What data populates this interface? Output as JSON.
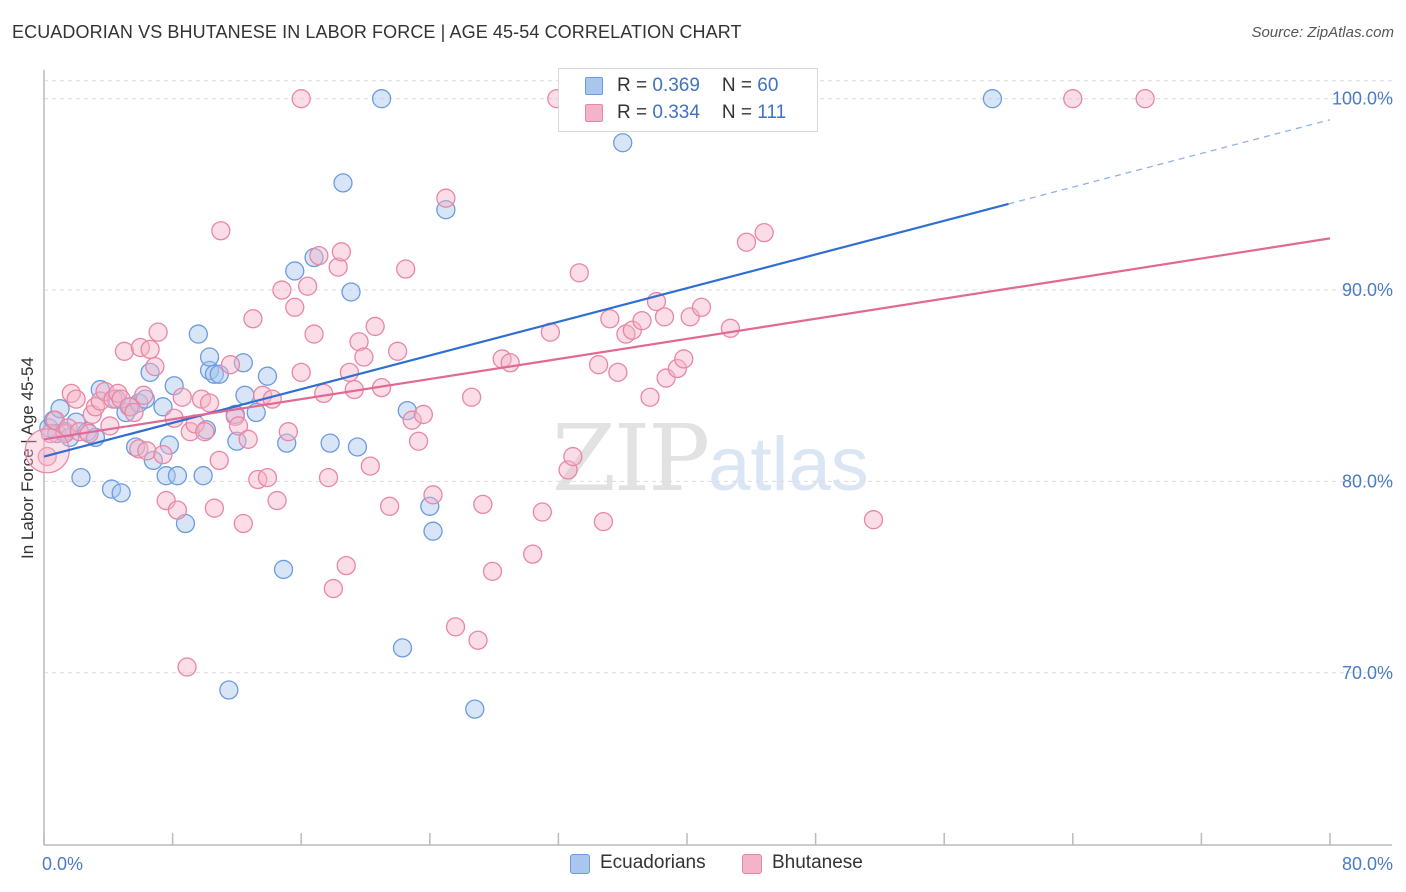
{
  "title": "ECUADORIAN VS BHUTANESE IN LABOR FORCE | AGE 45-54 CORRELATION CHART",
  "source": "Source: ZipAtlas.com",
  "watermark": {
    "zip": "ZIP",
    "atlas": "atlas"
  },
  "legend": {
    "series1": {
      "r_label": "R = ",
      "r_value": "0.369",
      "n_label": "N = ",
      "n_value": "60",
      "color": "#a9c6ee"
    },
    "series2": {
      "r_label": "R = ",
      "r_value": "0.334",
      "n_label": "N = ",
      "n_value": "111",
      "color": "#f4b3c8"
    }
  },
  "bottom_legend": {
    "series1": "Ecuadorians",
    "series2": "Bhutanese"
  },
  "chart_data": {
    "type": "scatter",
    "title": "ECUADORIAN VS BHUTANESE IN LABOR FORCE | AGE 45-54 CORRELATION CHART",
    "xlabel": "",
    "ylabel": "In Labor Force | Age 45-54",
    "xlim": [
      0,
      80
    ],
    "ylim": [
      61,
      101.5
    ],
    "x_tick_labels": [
      "0.0%",
      "80.0%"
    ],
    "y_ticks": [
      70,
      80,
      90,
      100
    ],
    "y_tick_labels": [
      "70.0%",
      "80.0%",
      "90.0%",
      "100.0%"
    ],
    "grid": true,
    "series": [
      {
        "name": "Ecuadorians",
        "color": "#6b9be0",
        "fill": "#a9c6ee",
        "trend": {
          "x0": 0,
          "y0": 81.3,
          "x1": 60,
          "y1": 94.5,
          "dashed_to_x": 80,
          "dashed_to_y": 98.9,
          "color": "#2f6fd0"
        },
        "points": [
          [
            0.3,
            82.8
          ],
          [
            0.6,
            83.2
          ],
          [
            0.8,
            82.5
          ],
          [
            1.0,
            83.8
          ],
          [
            1.3,
            82.6
          ],
          [
            1.6,
            82.3
          ],
          [
            2.0,
            83.1
          ],
          [
            2.3,
            80.2
          ],
          [
            2.7,
            82.6
          ],
          [
            3.2,
            82.3
          ],
          [
            3.5,
            84.8
          ],
          [
            4.2,
            79.6
          ],
          [
            4.5,
            84.3
          ],
          [
            4.8,
            79.4
          ],
          [
            5.1,
            83.6
          ],
          [
            5.4,
            83.9
          ],
          [
            5.7,
            81.8
          ],
          [
            5.9,
            84.1
          ],
          [
            6.3,
            84.3
          ],
          [
            6.6,
            85.7
          ],
          [
            6.8,
            81.1
          ],
          [
            7.4,
            83.9
          ],
          [
            7.6,
            80.3
          ],
          [
            7.8,
            81.9
          ],
          [
            8.1,
            85.0
          ],
          [
            8.3,
            80.3
          ],
          [
            8.8,
            77.8
          ],
          [
            9.6,
            87.7
          ],
          [
            9.9,
            80.3
          ],
          [
            10.1,
            82.7
          ],
          [
            10.3,
            85.8
          ],
          [
            10.3,
            86.5
          ],
          [
            10.6,
            85.6
          ],
          [
            10.9,
            85.6
          ],
          [
            11.5,
            69.1
          ],
          [
            11.9,
            83.5
          ],
          [
            12.0,
            82.1
          ],
          [
            12.4,
            86.2
          ],
          [
            12.5,
            84.5
          ],
          [
            13.2,
            83.6
          ],
          [
            13.9,
            85.5
          ],
          [
            14.9,
            75.4
          ],
          [
            15.1,
            82.0
          ],
          [
            15.6,
            91.0
          ],
          [
            16.8,
            91.7
          ],
          [
            17.8,
            82.0
          ],
          [
            18.6,
            95.6
          ],
          [
            19.1,
            89.9
          ],
          [
            19.5,
            81.8
          ],
          [
            21.0,
            100.0
          ],
          [
            22.3,
            71.3
          ],
          [
            22.6,
            83.7
          ],
          [
            24.0,
            78.7
          ],
          [
            24.2,
            77.4
          ],
          [
            25.0,
            94.2
          ],
          [
            26.8,
            68.1
          ],
          [
            36.0,
            97.7
          ],
          [
            59.0,
            100.0
          ]
        ]
      },
      {
        "name": "Bhutanese",
        "color": "#ea86a5",
        "fill": "#f4b3c8",
        "trend": {
          "x0": 0,
          "y0": 82.2,
          "x1": 80,
          "y1": 92.7,
          "color": "#e06a94"
        },
        "points": [
          [
            0.2,
            81.3
          ],
          [
            0.4,
            82.5
          ],
          [
            0.7,
            83.2
          ],
          [
            1.3,
            82.5
          ],
          [
            1.5,
            82.8
          ],
          [
            1.7,
            84.6
          ],
          [
            2.0,
            84.3
          ],
          [
            2.2,
            82.6
          ],
          [
            2.8,
            82.5
          ],
          [
            3.0,
            83.5
          ],
          [
            3.2,
            83.9
          ],
          [
            3.5,
            84.2
          ],
          [
            3.8,
            84.7
          ],
          [
            4.1,
            82.9
          ],
          [
            4.3,
            84.3
          ],
          [
            4.6,
            84.6
          ],
          [
            4.8,
            84.3
          ],
          [
            5.0,
            86.8
          ],
          [
            5.3,
            83.9
          ],
          [
            5.6,
            83.6
          ],
          [
            5.9,
            81.7
          ],
          [
            6.0,
            87.0
          ],
          [
            6.2,
            84.5
          ],
          [
            6.4,
            81.6
          ],
          [
            6.6,
            86.9
          ],
          [
            6.9,
            86.0
          ],
          [
            7.1,
            87.8
          ],
          [
            7.4,
            81.4
          ],
          [
            7.6,
            79.0
          ],
          [
            8.1,
            83.3
          ],
          [
            8.3,
            78.5
          ],
          [
            8.6,
            84.4
          ],
          [
            8.9,
            70.3
          ],
          [
            9.1,
            82.6
          ],
          [
            9.4,
            83.0
          ],
          [
            9.8,
            84.3
          ],
          [
            10.0,
            82.6
          ],
          [
            10.3,
            84.1
          ],
          [
            10.6,
            78.6
          ],
          [
            10.9,
            81.1
          ],
          [
            11.0,
            93.1
          ],
          [
            11.6,
            86.1
          ],
          [
            11.9,
            83.4
          ],
          [
            12.1,
            82.9
          ],
          [
            12.4,
            77.8
          ],
          [
            12.7,
            82.2
          ],
          [
            13.0,
            88.5
          ],
          [
            13.3,
            80.1
          ],
          [
            13.6,
            84.5
          ],
          [
            13.9,
            80.2
          ],
          [
            14.2,
            84.3
          ],
          [
            14.5,
            79.0
          ],
          [
            14.8,
            90.0
          ],
          [
            15.2,
            82.6
          ],
          [
            15.6,
            89.1
          ],
          [
            16.0,
            85.7
          ],
          [
            16.4,
            90.2
          ],
          [
            16.8,
            87.7
          ],
          [
            17.1,
            91.8
          ],
          [
            17.4,
            84.6
          ],
          [
            17.7,
            80.2
          ],
          [
            18.0,
            74.4
          ],
          [
            18.3,
            91.2
          ],
          [
            18.5,
            92.0
          ],
          [
            18.8,
            75.6
          ],
          [
            19.0,
            85.7
          ],
          [
            19.3,
            84.8
          ],
          [
            19.6,
            87.3
          ],
          [
            19.9,
            86.5
          ],
          [
            20.3,
            80.8
          ],
          [
            20.6,
            88.1
          ],
          [
            21.0,
            84.9
          ],
          [
            21.5,
            78.7
          ],
          [
            22.0,
            86.8
          ],
          [
            22.5,
            91.1
          ],
          [
            22.9,
            83.2
          ],
          [
            23.3,
            82.1
          ],
          [
            23.6,
            83.5
          ],
          [
            24.2,
            79.3
          ],
          [
            25.0,
            94.8
          ],
          [
            25.6,
            72.4
          ],
          [
            26.6,
            84.4
          ],
          [
            27.0,
            71.7
          ],
          [
            27.3,
            78.8
          ],
          [
            27.9,
            75.3
          ],
          [
            28.5,
            86.4
          ],
          [
            29.0,
            86.2
          ],
          [
            30.4,
            76.2
          ],
          [
            31.0,
            78.4
          ],
          [
            31.5,
            87.8
          ],
          [
            31.9,
            100.0
          ],
          [
            32.6,
            80.6
          ],
          [
            32.9,
            81.3
          ],
          [
            33.3,
            90.9
          ],
          [
            34.5,
            86.1
          ],
          [
            34.8,
            77.9
          ],
          [
            35.2,
            88.5
          ],
          [
            35.7,
            85.7
          ],
          [
            36.2,
            87.7
          ],
          [
            36.6,
            87.9
          ],
          [
            37.2,
            88.4
          ],
          [
            37.7,
            84.4
          ],
          [
            38.1,
            89.4
          ],
          [
            38.6,
            88.6
          ],
          [
            38.7,
            85.4
          ],
          [
            39.4,
            85.9
          ],
          [
            39.8,
            86.4
          ],
          [
            40.2,
            88.6
          ],
          [
            40.9,
            89.1
          ],
          [
            42.7,
            88.0
          ],
          [
            43.7,
            92.5
          ],
          [
            44.8,
            93.0
          ],
          [
            51.6,
            78.0
          ],
          [
            64.0,
            100.0
          ],
          [
            68.5,
            100.0
          ],
          [
            16.0,
            100.0
          ]
        ]
      }
    ]
  }
}
